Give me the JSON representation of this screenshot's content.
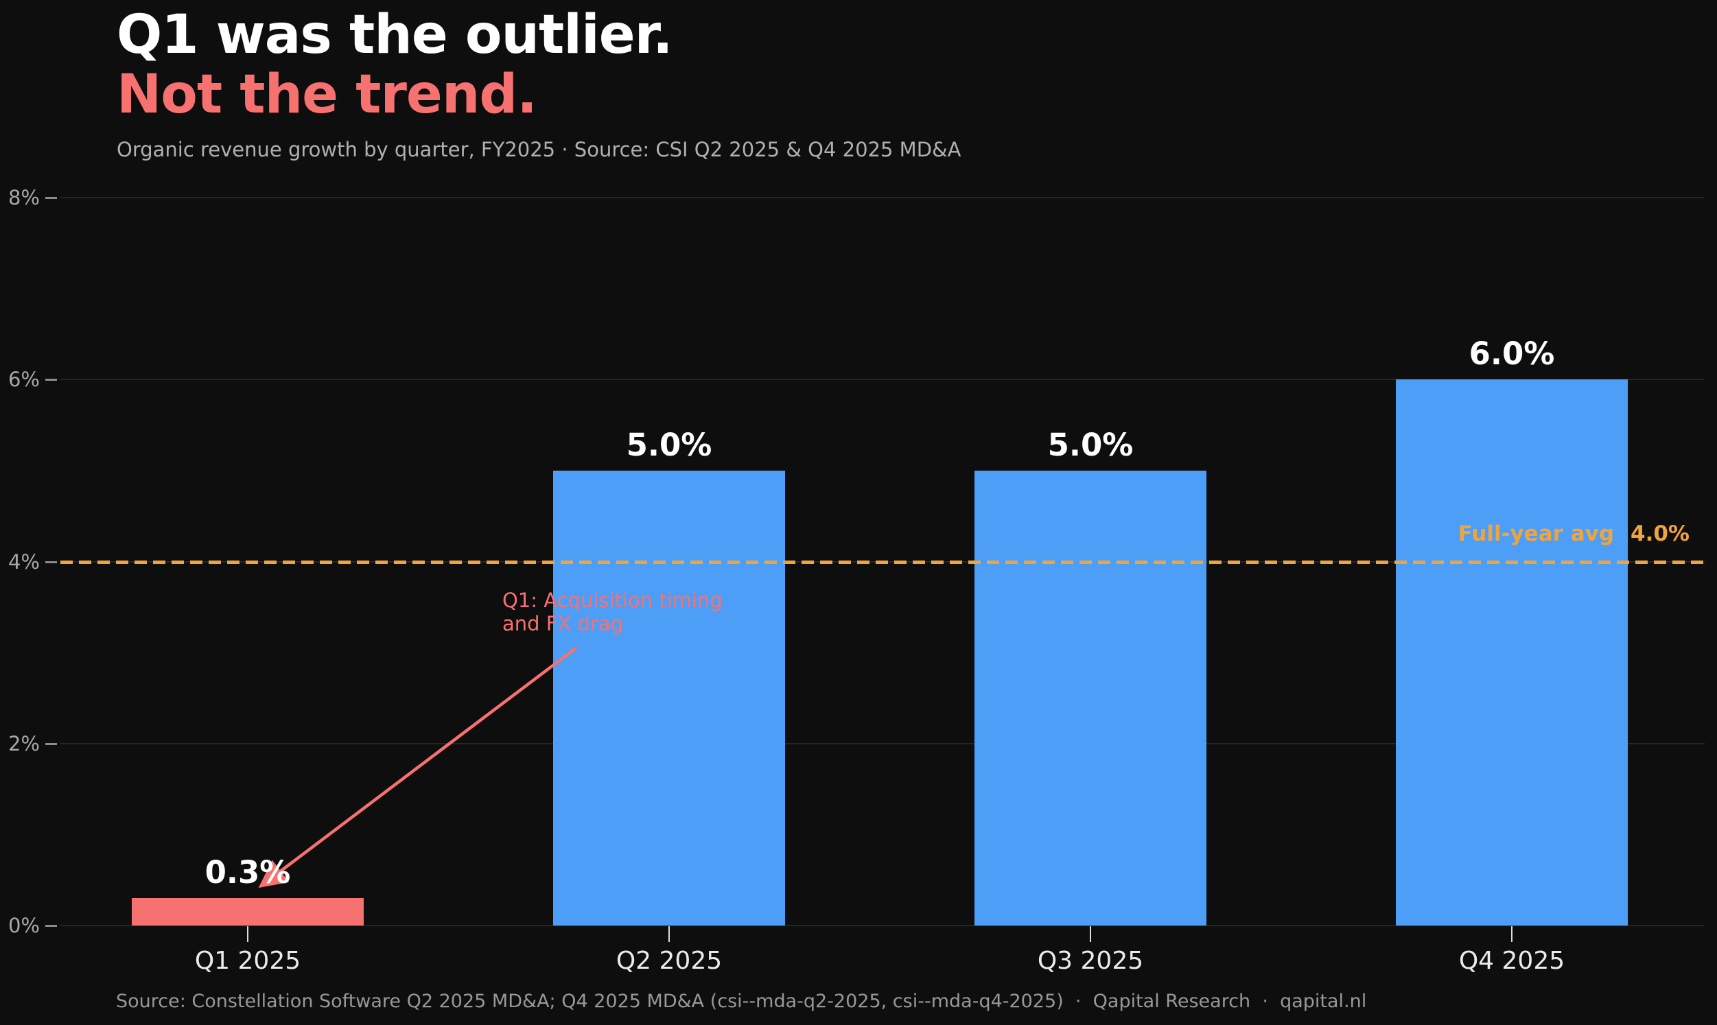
{
  "header": {
    "title_line1": "Q1 was the outlier.",
    "title_line2": "Not the trend.",
    "subtitle": "Organic revenue growth by quarter, FY2025 · Source: CSI Q2 2025 & Q4 2025 MD&A"
  },
  "footer": {
    "text": "Source: Constellation Software Q2 2025 MD&A; Q4 2025 MD&A (csi--mda-q2-2025, csi--mda-q4-2025)  ·  Qapital Research  ·  qapital.nl"
  },
  "chart_data": {
    "type": "bar",
    "title": "Q1 was the outlier. Not the trend.",
    "subtitle": "Organic revenue growth by quarter, FY2025",
    "categories": [
      "Q1 2025",
      "Q2 2025",
      "Q3 2025",
      "Q4 2025"
    ],
    "values": [
      0.3,
      5.0,
      5.0,
      6.0
    ],
    "value_labels": [
      "0.3%",
      "5.0%",
      "5.0%",
      "6.0%"
    ],
    "bar_colors": [
      "#f87171",
      "#4d9ef7",
      "#4d9ef7",
      "#4d9ef7"
    ],
    "xlabel": "",
    "ylabel": "",
    "ylim": [
      0,
      8
    ],
    "yticks": [
      0,
      2,
      4,
      6,
      8
    ],
    "ytick_labels": [
      "0%",
      "2%",
      "4%",
      "6%",
      "8%"
    ],
    "grid": "horizontal",
    "legend": "none",
    "reference_line": {
      "value": 4.0,
      "label": "Full-year avg",
      "value_label": "4.0%",
      "style": "dashed",
      "color": "#f0a43c"
    },
    "annotation": {
      "text": "Q1: Acquisition timing\nand FX drag",
      "target_category": "Q1 2025",
      "color": "#f87171"
    }
  },
  "colors": {
    "background": "#0e0e0e",
    "accent_coral": "#f87171",
    "bar_blue": "#4d9ef7",
    "avg_orange": "#f0a43c",
    "grid": "#262626",
    "text_primary": "#ffffff",
    "text_muted": "#b0b0b0"
  }
}
